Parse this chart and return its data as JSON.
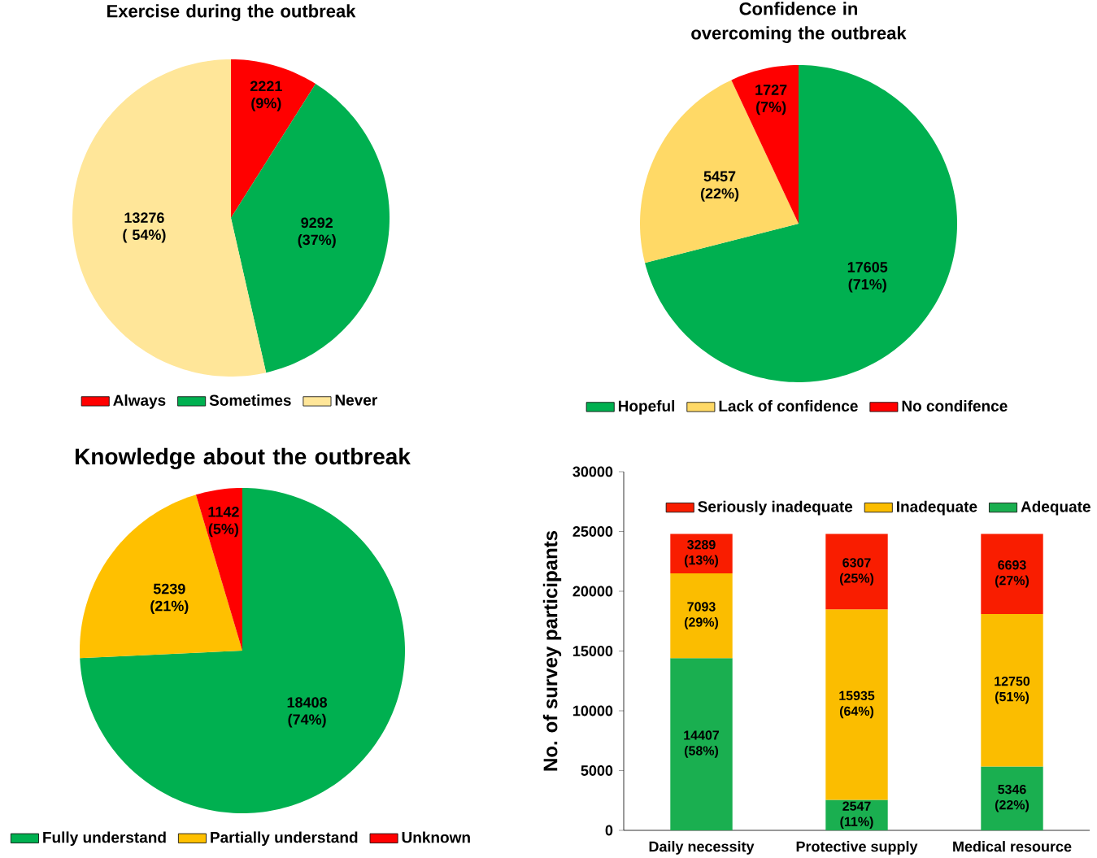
{
  "chart_data": [
    {
      "type": "pie",
      "title": "Exercise during the outbreak",
      "categories": [
        "Always",
        "Sometimes",
        "Never"
      ],
      "values": [
        2221,
        9292,
        13276
      ],
      "colors": [
        "#ff0000",
        "#00b050",
        "#ffe699"
      ],
      "value_labels": [
        "2221 (9%)",
        "9292 (37%)",
        "13276 ( 54%)"
      ],
      "legend": "bottom"
    },
    {
      "type": "pie",
      "title": "Confidence in overcoming the outbreak",
      "categories": [
        "Hopeful",
        "Lack of confidence",
        "No condifence"
      ],
      "values": [
        17605,
        5457,
        1727
      ],
      "colors": [
        "#00b050",
        "#ffd966",
        "#ff0000"
      ],
      "value_labels": [
        "17605 (71%)",
        "5457 (22%)",
        "1727 (7%)"
      ],
      "legend": "bottom"
    },
    {
      "type": "pie",
      "title": "Knowledge about the outbreak",
      "categories": [
        "Fully understand",
        "Partially understand",
        "Unknown"
      ],
      "values": [
        18408,
        5239,
        1142
      ],
      "colors": [
        "#00b050",
        "#ffc000",
        "#ff0000"
      ],
      "value_labels": [
        "18408 (74%)",
        "5239 (21%)",
        "1142 (5%)"
      ],
      "legend": "bottom"
    },
    {
      "type": "bar",
      "stacked": true,
      "categories": [
        "Daily necessity",
        "Protective supply",
        "Medical resource"
      ],
      "ylabel": "No. of survey  participants",
      "ylim": [
        0,
        30000
      ],
      "yticks": [
        0,
        5000,
        10000,
        15000,
        20000,
        25000,
        30000
      ],
      "legend": "top",
      "series": [
        {
          "name": "Adequate",
          "color": "#1aaf50",
          "values": [
            14407,
            2547,
            5346
          ],
          "value_labels": [
            "14407 (58%)",
            "2547 (11%)",
            "5346 (22%)"
          ]
        },
        {
          "name": "Inadequate",
          "color": "#fbbd00",
          "values": [
            7093,
            15935,
            12750
          ],
          "value_labels": [
            "7093 (29%)",
            "15935 (64%)",
            "12750 (51%)"
          ]
        },
        {
          "name": "Seriously inadequate",
          "color": "#f91d00",
          "values": [
            3289,
            6307,
            6693
          ],
          "value_labels": [
            "3289 (13%)",
            "6307 (25%)",
            "6693 (27%)"
          ]
        }
      ]
    }
  ]
}
